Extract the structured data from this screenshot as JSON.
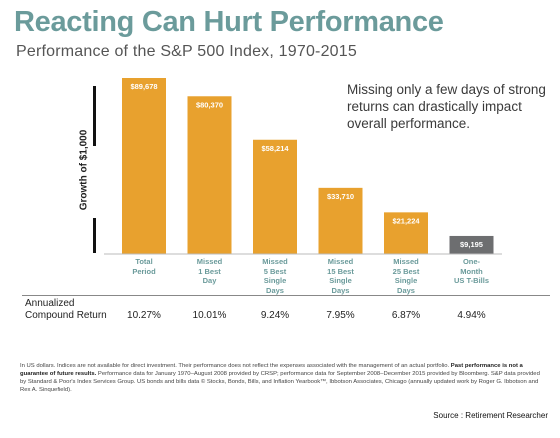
{
  "title": "Reacting Can Hurt Performance",
  "subtitle": "Performance of the S&P 500 Index, 1970-2015",
  "annotation": "Missing only a few days of strong returns can drastically impact overall performance.",
  "row_label": "Annualized\nCompound Return",
  "footnote": {
    "part1": "In US dollars. Indices are not available for direct investment. Their performance does not reflect the expenses associated with the management of an actual portfolio. ",
    "bold": "Past performance is not a guarantee of future results.",
    "part2": " Performance data for January 1970–August 2008 provided by CRSP; performance data for September 2008–December 2015 provided by Bloomberg. S&P data provided by Standard & Poor's Index Services Group. US bonds and bills data © Stocks, Bonds, Bills, and Inflation Yearbook™, Ibbotson Associates, Chicago (annually updated work by Roger G. Ibbotson and Rex A. Sinquefield)."
  },
  "source": "Source : Retirement Researcher",
  "colors": {
    "bar": "#e8a12e",
    "bar_tbill": "#6d6e70",
    "title": "#6b9b9b",
    "category": "#6b9b9b"
  },
  "chart_data": {
    "type": "bar",
    "title": "Reacting Can Hurt Performance",
    "subtitle": "Performance of the S&P 500 Index, 1970-2015",
    "ylabel": "Growth of $1,000",
    "xlabel": "",
    "categories": [
      "Total\nPeriod",
      "Missed\n1 Best\nDay",
      "Missed\n5 Best\nSingle\nDays",
      "Missed\n15 Best\nSingle\nDays",
      "Missed\n25 Best\nSingle\nDays",
      "One-\nMonth\nUS T-Bills"
    ],
    "values": [
      89678,
      80370,
      58214,
      33710,
      21224,
      9195
    ],
    "value_labels": [
      "$89,678",
      "$80,370",
      "$58,214",
      "$33,710",
      "$21,224",
      "$9,195"
    ],
    "annualized_compound_return": [
      "10.27%",
      "10.01%",
      "9.24%",
      "7.95%",
      "6.87%",
      "4.94%"
    ],
    "ylim": [
      0,
      89678
    ],
    "grid": false,
    "legend": "none"
  }
}
